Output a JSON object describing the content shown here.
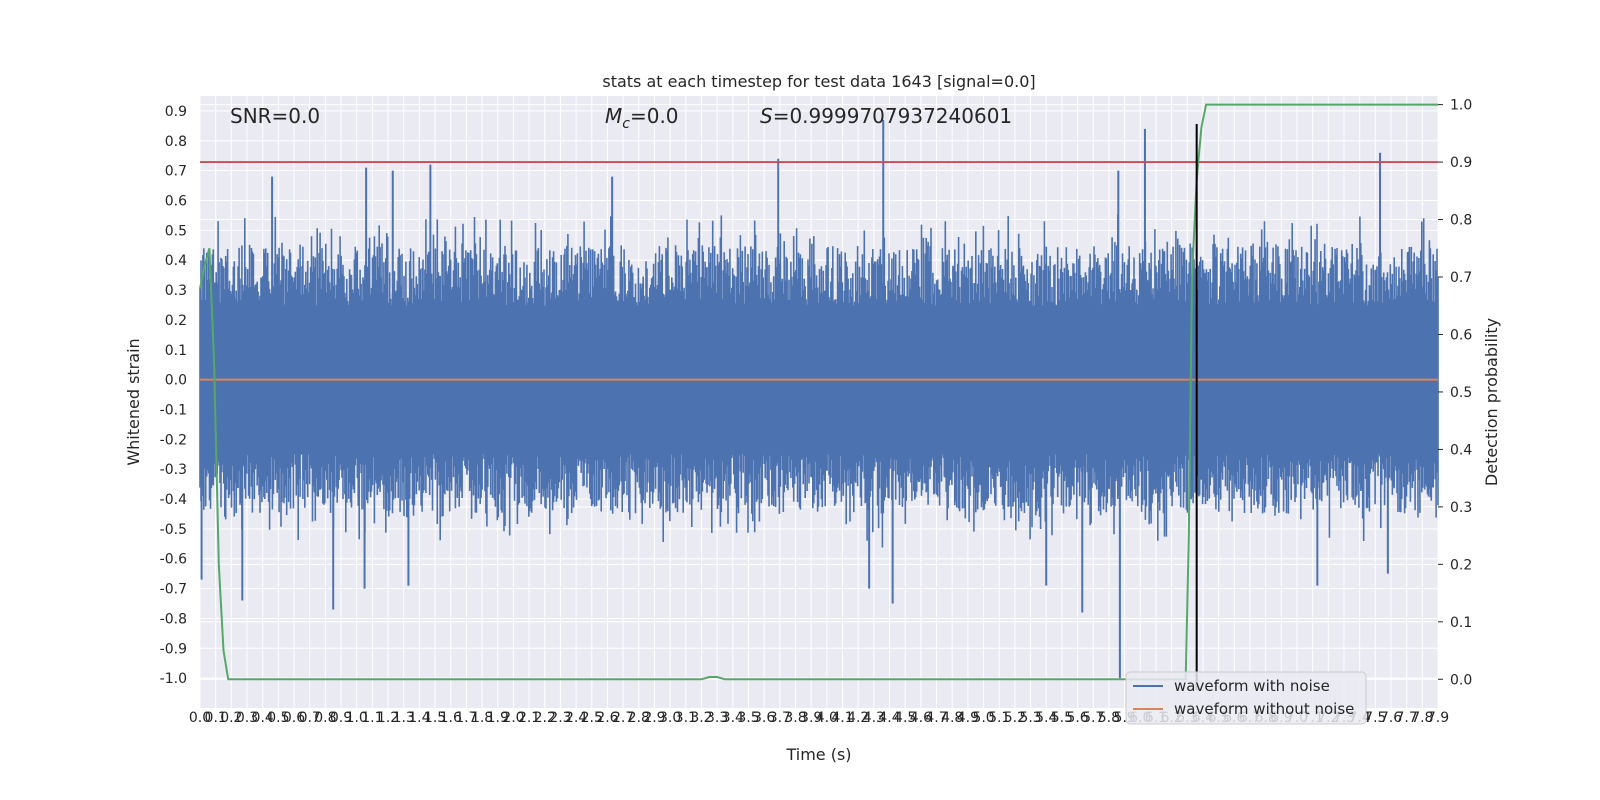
{
  "chart_data": {
    "type": "line",
    "title": "stats at each timestep for test data 1643 [signal=0.0]",
    "xlabel": "Time (s)",
    "ylabel": "Whitened strain",
    "y2label": "Detection probability",
    "annotations": {
      "snr": "SNR=0.0",
      "mc_symbol": "M",
      "mc_sub": "c",
      "mc_value": "=0.0",
      "s_symbol": "S",
      "s_value": "=0.9999707937240601"
    },
    "xlim": [
      0,
      7.9
    ],
    "ylim": [
      -1.1,
      0.95
    ],
    "y2lim": [
      -0.05,
      1.015
    ],
    "x_ticks": [
      0.0,
      0.1,
      0.2,
      0.3,
      0.4,
      0.5,
      0.6,
      0.7,
      0.8,
      0.9,
      1.0,
      1.1,
      1.2,
      1.3,
      1.4,
      1.5,
      1.6,
      1.7,
      1.8,
      1.9,
      2.0,
      2.1,
      2.2,
      2.3,
      2.4,
      2.5,
      2.6,
      2.7,
      2.8,
      2.9,
      3.0,
      3.1,
      3.2,
      3.3,
      3.4,
      3.5,
      3.6,
      3.7,
      3.8,
      3.9,
      4.0,
      4.1,
      4.2,
      4.3,
      4.4,
      4.5,
      4.6,
      4.7,
      4.8,
      4.9,
      5.0,
      5.1,
      5.2,
      5.3,
      5.4,
      5.5,
      5.6,
      5.7,
      5.8,
      5.9,
      6.0,
      6.1,
      6.2,
      6.3,
      6.4,
      6.5,
      6.6,
      6.7,
      6.8,
      6.9,
      7.0,
      7.1,
      7.2,
      7.3,
      7.4,
      7.5,
      7.6,
      7.7,
      7.8,
      7.9
    ],
    "y_ticks": [
      -1.0,
      -0.9,
      -0.8,
      -0.7,
      -0.6,
      -0.5,
      -0.4,
      -0.3,
      -0.2,
      -0.1,
      0.0,
      0.1,
      0.2,
      0.3,
      0.4,
      0.5,
      0.6,
      0.7,
      0.8,
      0.9
    ],
    "y2_ticks": [
      0.0,
      0.1,
      0.2,
      0.3,
      0.4,
      0.5,
      0.6,
      0.7,
      0.8,
      0.9,
      1.0
    ],
    "grid": true,
    "legend_position": "lower-right",
    "threshold_line": {
      "y2": 0.9,
      "color": "#c44e52"
    },
    "marker_line": {
      "x": 6.36,
      "color": "#000000"
    },
    "colors": {
      "noise": "#4c72b0",
      "clean": "#dd8452",
      "probability": "#55a868",
      "background": "#eaeaf2",
      "grid": "#ffffff"
    },
    "series": [
      {
        "name": "waveform with noise",
        "axis": "left",
        "style": "dense-noise",
        "typical_range": [
          -0.45,
          0.45
        ],
        "spikes": [
          {
            "x": 0.01,
            "y": -0.67
          },
          {
            "x": 0.27,
            "y": -0.74
          },
          {
            "x": 0.46,
            "y": 0.68
          },
          {
            "x": 0.85,
            "y": -0.77
          },
          {
            "x": 1.05,
            "y": -0.7
          },
          {
            "x": 1.06,
            "y": 0.71
          },
          {
            "x": 1.23,
            "y": 0.7
          },
          {
            "x": 1.33,
            "y": -0.69
          },
          {
            "x": 1.47,
            "y": 0.72
          },
          {
            "x": 2.63,
            "y": 0.68
          },
          {
            "x": 3.69,
            "y": 0.74
          },
          {
            "x": 4.27,
            "y": -0.7
          },
          {
            "x": 4.36,
            "y": 0.87
          },
          {
            "x": 4.42,
            "y": -0.75
          },
          {
            "x": 5.4,
            "y": -0.69
          },
          {
            "x": 5.63,
            "y": -0.78
          },
          {
            "x": 5.86,
            "y": 0.7
          },
          {
            "x": 5.87,
            "y": -1.0
          },
          {
            "x": 6.03,
            "y": 0.84
          },
          {
            "x": 7.13,
            "y": -0.69
          },
          {
            "x": 7.53,
            "y": 0.76
          },
          {
            "x": 7.58,
            "y": -0.65
          }
        ]
      },
      {
        "name": "waveform without noise",
        "axis": "left",
        "x": [
          0,
          7.9
        ],
        "y": [
          0.0,
          0.0
        ]
      },
      {
        "axis": "right",
        "x": [
          0.0,
          0.03,
          0.06,
          0.09,
          0.12,
          0.15,
          0.18,
          3.15,
          3.2,
          3.25,
          3.3,
          3.35,
          6.29,
          6.31,
          6.33,
          6.36,
          6.39,
          6.42,
          7.9
        ],
        "y": [
          0.68,
          0.72,
          0.75,
          0.55,
          0.2,
          0.05,
          0.0,
          0.0,
          0.0,
          0.004,
          0.004,
          0.0,
          0.0,
          0.25,
          0.7,
          0.87,
          0.96,
          1.0,
          1.0
        ]
      }
    ]
  }
}
